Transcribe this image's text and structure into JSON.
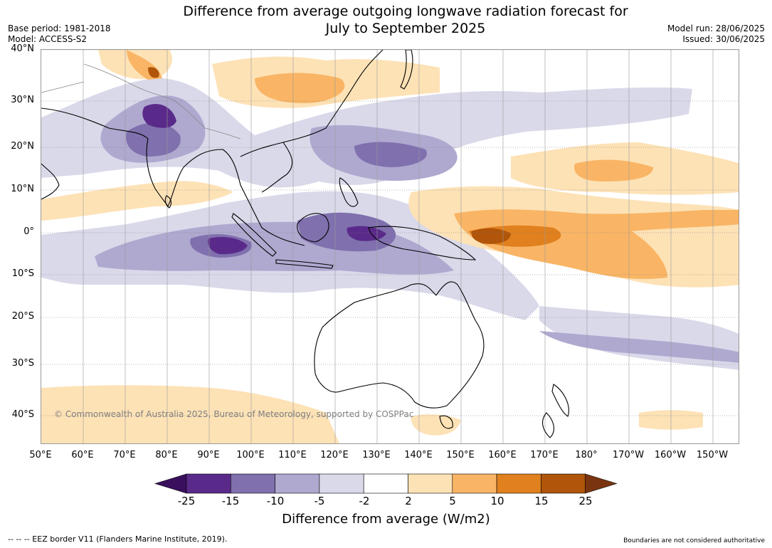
{
  "title_line1": "Difference from average outgoing longwave radiation forecast for",
  "title_line2": "July to September 2025",
  "base_period": "Base period: 1981-2018",
  "model": "Model: ACCESS-S2",
  "model_run": "Model run: 28/06/2025",
  "issued": "Issued: 30/06/2025",
  "lat_labels": [
    "40°N",
    "30°N",
    "20°N",
    "10°N",
    "0°",
    "10°S",
    "20°S",
    "30°S",
    "40°S"
  ],
  "lon_labels": [
    "50°E",
    "60°E",
    "70°E",
    "80°E",
    "90°E",
    "100°E",
    "110°E",
    "120°E",
    "130°E",
    "140°E",
    "150°E",
    "160°E",
    "170°E",
    "180°",
    "170°W",
    "160°W",
    "150°W"
  ],
  "copyright": "© Commonwealth of Australia 2025, Bureau of Meteorology, supported by COSPPac",
  "legend": {
    "labels": [
      "-25",
      "-15",
      "-10",
      "-5",
      "-2",
      "2",
      "5",
      "10",
      "15",
      "25"
    ],
    "colors": [
      "#3a0f5e",
      "#5a2a8a",
      "#8070ae",
      "#afa9d0",
      "#d9d9ea",
      "#ffffff",
      "#fde2b6",
      "#f9b565",
      "#e0801e",
      "#b0550a",
      "#7a3410"
    ],
    "title": "Difference from average (W/m2)"
  },
  "footer_left": "--  --  -- EEZ border V11 (Flanders Marine Institute, 2019).",
  "footer_right": "Boundaries are not considered authoritative"
}
